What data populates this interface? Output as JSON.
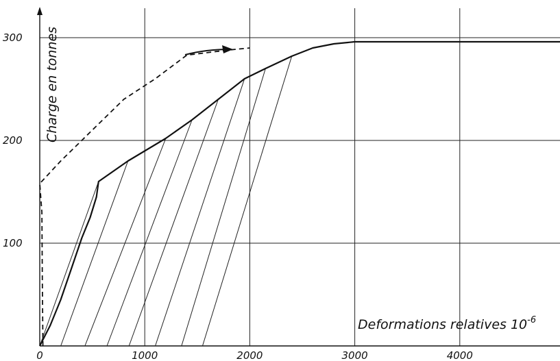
{
  "chart_data": {
    "type": "line",
    "xlabel": "Deformations relatives 10",
    "xlabel_exponent": "-6",
    "ylabel": "Charge en tonnes",
    "xlim": [
      0,
      5000
    ],
    "ylim": [
      0,
      300
    ],
    "x_ticks": [
      0,
      1000,
      2000,
      3000,
      4000
    ],
    "x_tick_labels": [
      "0",
      "1000",
      "2000",
      "3000",
      "4000"
    ],
    "y_ticks": [
      100,
      200,
      300
    ],
    "y_tick_labels": [
      "100",
      "200",
      "300"
    ],
    "grid": true,
    "series": [
      {
        "style": "solid",
        "x": [
          0,
          100,
          200,
          300,
          400,
          480,
          540,
          560,
          560,
          840,
          1200,
          1450,
          1700,
          1950,
          2150,
          2400,
          2600,
          2800,
          3000,
          4000,
          5000
        ],
        "y": [
          0,
          20,
          45,
          75,
          105,
          125,
          145,
          160,
          160,
          180,
          202,
          220,
          240,
          260,
          270,
          282,
          290,
          294,
          296,
          296,
          296
        ]
      },
      {
        "style": "dashed",
        "x": [
          30,
          25,
          20,
          0,
          200,
          600,
          800,
          1100,
          1400,
          1800,
          2000
        ],
        "y": [
          0,
          60,
          130,
          158,
          180,
          220,
          240,
          260,
          283,
          288,
          290
        ]
      }
    ],
    "unloading_lines": [
      {
        "x0": 0,
        "x1": 560,
        "y1": 160
      },
      {
        "x0": 200,
        "x1": 840,
        "y1": 180
      },
      {
        "x0": 430,
        "x1": 1200,
        "y1": 202
      },
      {
        "x0": 640,
        "x1": 1450,
        "y1": 220
      },
      {
        "x0": 850,
        "x1": 1700,
        "y1": 240
      },
      {
        "x0": 1100,
        "x1": 1950,
        "y1": 260
      },
      {
        "x0": 1350,
        "x1": 2150,
        "y1": 270
      },
      {
        "x0": 1550,
        "x1": 2400,
        "y1": 282
      }
    ],
    "colors": {
      "ink": "#111111",
      "background": "#ffffff"
    }
  }
}
